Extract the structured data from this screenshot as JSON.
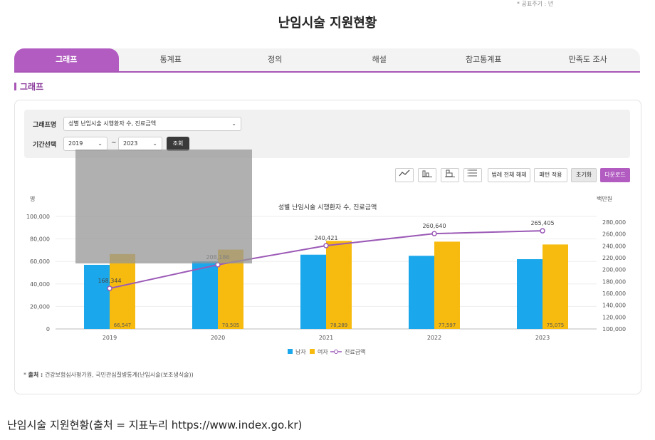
{
  "top_note": "* 공표주기 : 년",
  "page_title": "난임시술 지원현황",
  "tabs": [
    {
      "label": "그래프",
      "active": true
    },
    {
      "label": "통계표"
    },
    {
      "label": "정의"
    },
    {
      "label": "해설"
    },
    {
      "label": "참고통계표"
    },
    {
      "label": "만족도 조사"
    }
  ],
  "section_label": "그래프",
  "filter": {
    "graph_label": "그래프명",
    "graph_value": "성별 난임시술 시행환자 수, 진료금액",
    "period_label": "기간선택",
    "start_year": "2019",
    "end_year": "2023",
    "tilde": "~",
    "search_button": "조회"
  },
  "toolbar": {
    "line_icon": "line-chart-icon",
    "bar_icon": "bar-chart-icon",
    "stacked_icon": "stacked-bar-icon",
    "list_icon": "list-icon",
    "legend_toggle": "범례 전체 해제",
    "pattern_apply": "패턴 적용",
    "reset": "초기화",
    "download": "다운로드"
  },
  "colors": {
    "male": "#1aa7ec",
    "female": "#f7bb10",
    "cost": "#9b59b6",
    "accent": "#b25cc1"
  },
  "chart_data": {
    "type": "bar",
    "title": "성별 난임시술 시행환자 수, 진료금액",
    "ylabel_left": "명",
    "ylabel_right": "백만원",
    "categories": [
      "2019",
      "2020",
      "2021",
      "2022",
      "2023"
    ],
    "ylim_left": [
      0,
      100000
    ],
    "yticks_left": [
      "100,000",
      "80,000",
      "60,000",
      "40,000",
      "20,000",
      "0"
    ],
    "ylim_right": [
      100000,
      280000
    ],
    "yticks_right": [
      "280,000",
      "260,000",
      "240,000",
      "220,000",
      "200,000",
      "180,000",
      "160,000",
      "140,000",
      "120,000",
      "100,000"
    ],
    "series": [
      {
        "name": "남자",
        "type": "bar",
        "axis": "left",
        "values": [
          57000,
          60000,
          66000,
          65000,
          62000
        ],
        "labels": [
          "",
          "",
          "",
          "",
          ""
        ]
      },
      {
        "name": "여자",
        "type": "bar",
        "axis": "left",
        "values": [
          66547,
          70505,
          78289,
          77597,
          75075
        ],
        "labels": [
          "66,547",
          "70,505",
          "78,289",
          "77,597",
          "75,075"
        ]
      },
      {
        "name": "진료금액",
        "type": "line",
        "axis": "right",
        "values": [
          168344,
          208186,
          240421,
          260640,
          265405
        ],
        "labels": [
          "168,344",
          "208,186",
          "240,421",
          "260,640",
          "265,405"
        ]
      }
    ],
    "legend_position": "bottom"
  },
  "source": {
    "label": "출처 :",
    "text": "건강보험심사평가원, 국민관심질병통계(난임시술(보조생식술))"
  },
  "caption": "난임시술 지원현황(출처 = 지표누리 https://www.index.go.kr)"
}
